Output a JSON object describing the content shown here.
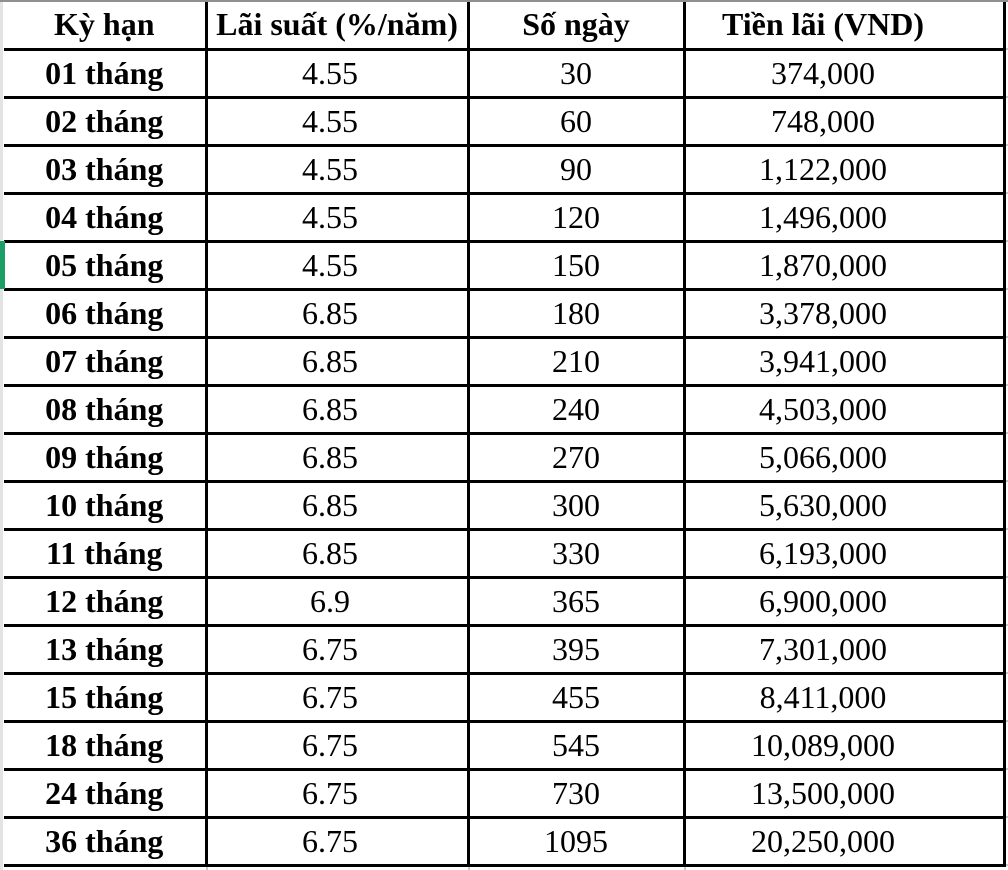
{
  "table": {
    "columns": [
      {
        "label": "Kỳ hạn"
      },
      {
        "label": "Lãi suất (%/năm)"
      },
      {
        "label": "Số ngày"
      },
      {
        "label": "Tiền lãi (VND)"
      }
    ],
    "rows": [
      [
        "01 tháng",
        "4.55",
        "30",
        "374,000"
      ],
      [
        "02 tháng",
        "4.55",
        "60",
        "748,000"
      ],
      [
        "03 tháng",
        "4.55",
        "90",
        "1,122,000"
      ],
      [
        "04 tháng",
        "4.55",
        "120",
        "1,496,000"
      ],
      [
        "05 tháng",
        "4.55",
        "150",
        "1,870,000"
      ],
      [
        "06 tháng",
        "6.85",
        "180",
        "3,378,000"
      ],
      [
        "07 tháng",
        "6.85",
        "210",
        "3,941,000"
      ],
      [
        "08 tháng",
        "6.85",
        "240",
        "4,503,000"
      ],
      [
        "09 tháng",
        "6.85",
        "270",
        "5,066,000"
      ],
      [
        "10 tháng",
        "6.85",
        "300",
        "5,630,000"
      ],
      [
        "11 tháng",
        "6.85",
        "330",
        "6,193,000"
      ],
      [
        "12 tháng",
        "6.9",
        "365",
        "6,900,000"
      ],
      [
        "13 tháng",
        "6.75",
        "395",
        "7,301,000"
      ],
      [
        "15 tháng",
        "6.75",
        "455",
        "8,411,000"
      ],
      [
        "18 tháng",
        "6.75",
        "545",
        "10,089,000"
      ],
      [
        "24 tháng",
        "6.75",
        "730",
        "13,500,000"
      ],
      [
        "36 tháng",
        "6.75",
        "1095",
        "20,250,000"
      ]
    ],
    "selection": {
      "row_label": "05 tháng"
    }
  },
  "colors": {
    "border_black": "#000000",
    "selection_green": "#1e9e67",
    "gridline_gray": "#c9c9c9",
    "left_edge_gray": "#e3e3e3",
    "top_hairline_gray": "#8f8f8f",
    "text_black": "#000000"
  }
}
